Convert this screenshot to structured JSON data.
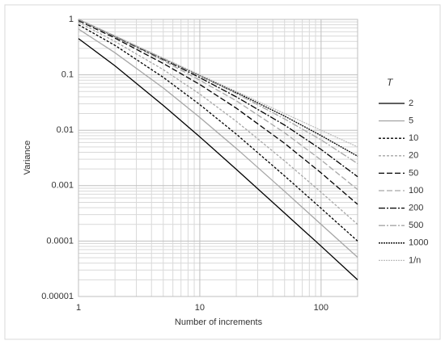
{
  "chart_data": {
    "type": "line",
    "x_label": "Number of increments",
    "y_label": "Variance",
    "legend_title": "T",
    "legend": "right",
    "log_x": true,
    "log_y": true,
    "grid": true,
    "minor_grid": true,
    "xlim": [
      1,
      200
    ],
    "ylim": [
      1e-05,
      1
    ],
    "xticks": [
      1,
      10,
      100
    ],
    "yticks": [
      1e-05,
      0.0001,
      0.001,
      0.01,
      0.1,
      1
    ],
    "x": [
      1,
      2,
      5,
      10,
      20,
      50,
      100,
      200
    ],
    "series": [
      {
        "name": "2",
        "color": "#000000",
        "dash": "none",
        "values": [
          0.45,
          0.145,
          0.028,
          0.0076,
          0.00197,
          0.00032,
          8.1e-05,
          2e-05
        ]
      },
      {
        "name": "5",
        "color": "#a6a6a6",
        "dash": "none",
        "values": [
          0.67,
          0.25,
          0.058,
          0.017,
          0.0047,
          0.00079,
          0.0002,
          5.1e-05
        ]
      },
      {
        "name": "10",
        "color": "#000000",
        "dash": "3,2",
        "values": [
          0.8,
          0.34,
          0.09,
          0.029,
          0.0085,
          0.0015,
          0.00039,
          0.0001
        ]
      },
      {
        "name": "20",
        "color": "#a6a6a6",
        "dash": "3,2",
        "values": [
          0.89,
          0.4,
          0.124,
          0.045,
          0.0145,
          0.0028,
          0.00076,
          0.0002
        ]
      },
      {
        "name": "50",
        "color": "#000000",
        "dash": "7,3",
        "values": [
          0.95,
          0.46,
          0.16,
          0.067,
          0.025,
          0.0058,
          0.0017,
          0.00046
        ]
      },
      {
        "name": "100",
        "color": "#a6a6a6",
        "dash": "7,3",
        "values": [
          0.98,
          0.48,
          0.18,
          0.08,
          0.034,
          0.009,
          0.0029,
          0.00085
        ]
      },
      {
        "name": "200",
        "color": "#000000",
        "dash": "8,2,2,2",
        "values": [
          0.99,
          0.49,
          0.19,
          0.089,
          0.04,
          0.0124,
          0.0045,
          0.00145
        ]
      },
      {
        "name": "500",
        "color": "#a6a6a6",
        "dash": "8,2,2,2",
        "values": [
          1.0,
          0.5,
          0.195,
          0.095,
          0.046,
          0.016,
          0.0067,
          0.0025
        ]
      },
      {
        "name": "1000",
        "color": "#000000",
        "dash": "2,1",
        "values": [
          1.0,
          0.5,
          0.198,
          0.098,
          0.048,
          0.018,
          0.008,
          0.0034
        ]
      },
      {
        "name": "1/n",
        "color": "#bfbfbf",
        "dash": "2,1",
        "values": [
          1,
          0.5,
          0.2,
          0.1,
          0.05,
          0.02,
          0.01,
          0.005
        ]
      }
    ]
  }
}
